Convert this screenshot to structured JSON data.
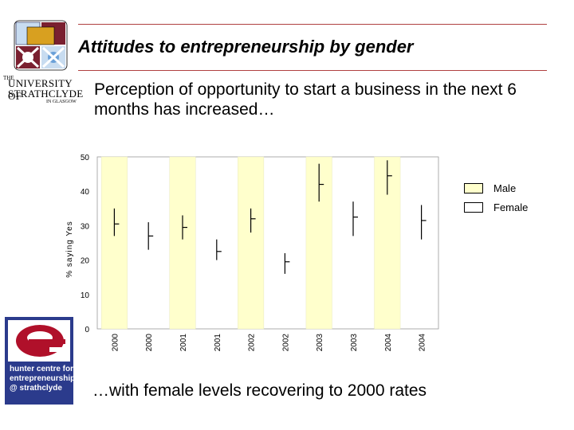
{
  "slide": {
    "title": "Attitudes to entrepreneurship by gender",
    "subtitle": "Perception of opportunity to start a business in the next 6 months has increased…",
    "footer": "…with female levels recovering to 2000 rates"
  },
  "logos": {
    "university_the": "THE",
    "university_line1": "UNIVERSITY OF",
    "university_line2": "STRATHCLYDE",
    "university_line3": "IN GLASGOW",
    "hunter_centre_lines": [
      "hunter centre for",
      "entrepreneurship",
      "@ strathclyde"
    ]
  },
  "legend": {
    "male": "Male",
    "female": "Female"
  },
  "colors": {
    "male_fill": "#FFFFCC",
    "female_fill": "#FFFFFF",
    "rule": "#B04040",
    "plot_bg": "#FFFFFF"
  },
  "chart_data": {
    "type": "bar",
    "title": "",
    "xlabel": "",
    "ylabel": "% saying Yes",
    "ylim": [
      0,
      50
    ],
    "yticks": [
      0,
      10,
      20,
      30,
      40,
      50
    ],
    "categories": [
      "2000",
      "2000",
      "2001",
      "2001",
      "2002",
      "2002",
      "2003",
      "2003",
      "2004",
      "2004"
    ],
    "series_of_bar": [
      "Male",
      "Female",
      "Male",
      "Female",
      "Male",
      "Female",
      "Male",
      "Female",
      "Male",
      "Female"
    ],
    "values": [
      50,
      0,
      50,
      0,
      50,
      0,
      50,
      0,
      50,
      0
    ],
    "error_bars": [
      {
        "low": 27,
        "mid": 30.5,
        "high": 35
      },
      {
        "low": 23,
        "mid": 27,
        "high": 31
      },
      {
        "low": 26,
        "mid": 29.5,
        "high": 33
      },
      {
        "low": 20,
        "mid": 22.5,
        "high": 26
      },
      {
        "low": 28,
        "mid": 32,
        "high": 35
      },
      {
        "low": 16,
        "mid": 19.5,
        "high": 22
      },
      {
        "low": 37,
        "mid": 42,
        "high": 48
      },
      {
        "low": 27,
        "mid": 32.5,
        "high": 37
      },
      {
        "low": 39,
        "mid": 44.5,
        "high": 49
      },
      {
        "low": 26,
        "mid": 31.5,
        "high": 36
      }
    ],
    "grid": false
  }
}
